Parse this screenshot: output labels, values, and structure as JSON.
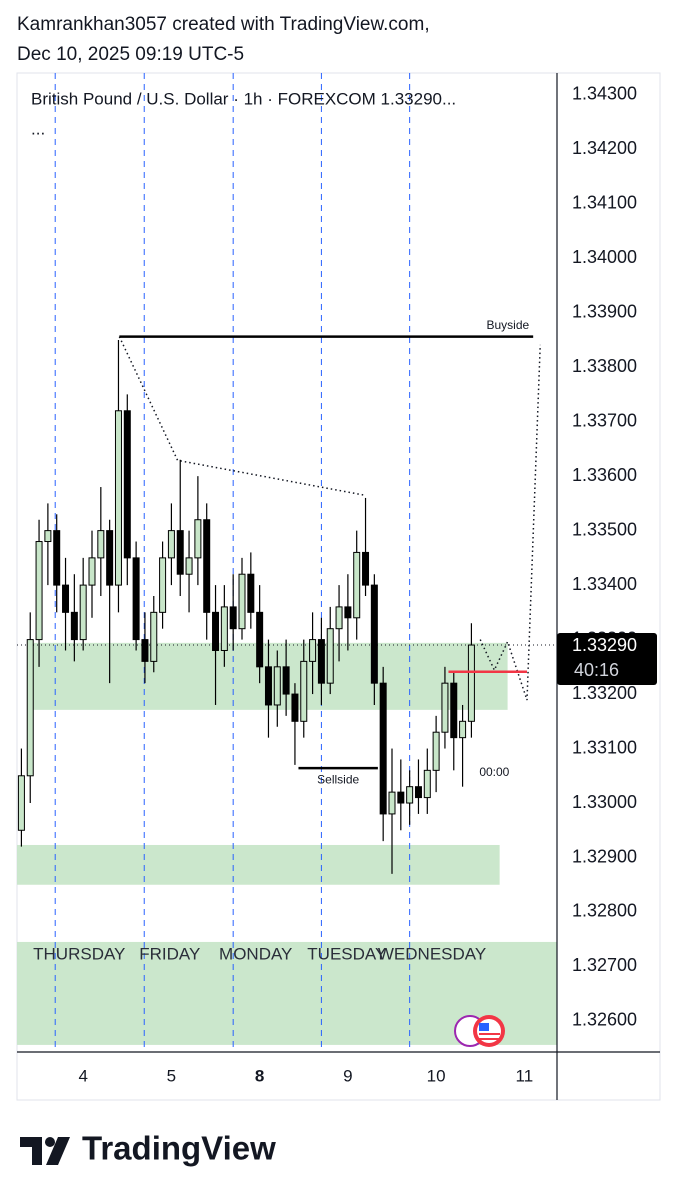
{
  "header": {
    "line1": "Kamrankhan3057 created with TradingView.com,",
    "line2": "Dec 10, 2025 09:19 UTC-5"
  },
  "footer": {
    "brand": "TradingView"
  },
  "chart_data": {
    "type": "candlestick",
    "legend": "British Pound / U.S. Dollar · 1h · FOREXCOM  1.33290...",
    "legend_more": "...",
    "up_color": "#c8e6c9",
    "down_color": "#000000",
    "wick_color": "#000000",
    "x": [
      -0.7,
      -0.6,
      -0.5,
      -0.4,
      -0.3,
      -0.2,
      -0.1,
      0,
      0.1,
      0.2,
      0.3,
      0.4,
      0.5,
      0.6,
      0.7,
      0.8,
      0.9,
      1.0,
      1.1,
      1.2,
      1.3,
      1.4,
      1.5,
      1.6,
      1.7,
      1.8,
      1.9,
      2.0,
      2.1,
      2.2,
      2.3,
      2.4,
      2.5,
      2.6,
      2.7,
      2.8,
      2.9,
      3.0,
      3.1,
      3.2,
      3.3,
      3.4,
      3.5,
      3.6,
      3.7,
      3.8,
      3.9,
      4.0,
      4.1,
      4.2,
      4.3,
      4.4
    ],
    "open": [
      1.3295,
      1.3305,
      1.333,
      1.3348,
      1.335,
      1.334,
      1.3335,
      1.333,
      1.334,
      1.3345,
      1.335,
      1.334,
      1.3372,
      1.3345,
      1.333,
      1.3326,
      1.3335,
      1.3345,
      1.335,
      1.3342,
      1.3345,
      1.3352,
      1.3335,
      1.3328,
      1.3336,
      1.3332,
      1.3342,
      1.3335,
      1.3325,
      1.3318,
      1.3325,
      1.332,
      1.3315,
      1.3326,
      1.333,
      1.3322,
      1.3332,
      1.3336,
      1.3334,
      1.3346,
      1.334,
      1.3322,
      1.3298,
      1.3302,
      1.33,
      1.3303,
      1.3301,
      1.3306,
      1.3313,
      1.3322,
      1.3312,
      1.3315
    ],
    "high": [
      1.331,
      1.3335,
      1.3352,
      1.3355,
      1.3353,
      1.3345,
      1.3342,
      1.3345,
      1.335,
      1.3358,
      1.3352,
      1.3385,
      1.3375,
      1.3348,
      1.3335,
      1.3338,
      1.3348,
      1.3355,
      1.3363,
      1.335,
      1.336,
      1.3355,
      1.334,
      1.334,
      1.3342,
      1.3345,
      1.3346,
      1.334,
      1.333,
      1.3328,
      1.333,
      1.3322,
      1.333,
      1.3335,
      1.3334,
      1.3336,
      1.334,
      1.3342,
      1.335,
      1.3356,
      1.3342,
      1.3325,
      1.331,
      1.3308,
      1.3306,
      1.3308,
      1.331,
      1.3316,
      1.3325,
      1.3324,
      1.3318,
      1.3333
    ],
    "low": [
      1.3292,
      1.33,
      1.3325,
      1.334,
      1.3335,
      1.3328,
      1.3326,
      1.3328,
      1.3334,
      1.3338,
      1.3322,
      1.3335,
      1.334,
      1.3328,
      1.3322,
      1.3324,
      1.3332,
      1.334,
      1.3338,
      1.3335,
      1.334,
      1.333,
      1.3318,
      1.3325,
      1.3328,
      1.333,
      1.3332,
      1.3322,
      1.3312,
      1.3314,
      1.3316,
      1.3307,
      1.3312,
      1.332,
      1.3318,
      1.332,
      1.3326,
      1.3328,
      1.333,
      1.3338,
      1.3318,
      1.3293,
      1.3287,
      1.3295,
      1.3296,
      1.3298,
      1.3298,
      1.3302,
      1.331,
      1.3306,
      1.3303,
      1.3312
    ],
    "close": [
      1.3305,
      1.333,
      1.3348,
      1.335,
      1.334,
      1.3335,
      1.333,
      1.334,
      1.3345,
      1.335,
      1.334,
      1.3372,
      1.3345,
      1.333,
      1.3326,
      1.3335,
      1.3345,
      1.335,
      1.3342,
      1.3345,
      1.3352,
      1.3335,
      1.3328,
      1.3336,
      1.3332,
      1.3342,
      1.3335,
      1.3325,
      1.3318,
      1.3325,
      1.332,
      1.3315,
      1.3326,
      1.333,
      1.3322,
      1.3332,
      1.3336,
      1.3334,
      1.3346,
      1.334,
      1.3322,
      1.3298,
      1.3302,
      1.33,
      1.3303,
      1.3301,
      1.3306,
      1.3313,
      1.3322,
      1.3312,
      1.3315,
      1.3329
    ],
    "xlim": [
      -0.75,
      5.37
    ],
    "xticks": [
      {
        "value": 0,
        "label": "4"
      },
      {
        "value": 1,
        "label": "5"
      },
      {
        "value": 2,
        "label": "8",
        "bold": true
      },
      {
        "value": 3,
        "label": "9"
      },
      {
        "value": 4,
        "label": "10"
      },
      {
        "value": 5,
        "label": "11"
      }
    ],
    "ylim": [
      1.32543,
      1.3434
    ],
    "yticks": [
      {
        "value": 1.343,
        "label": "1.34300"
      },
      {
        "value": 1.342,
        "label": "1.34200"
      },
      {
        "value": 1.341,
        "label": "1.34100"
      },
      {
        "value": 1.34,
        "label": "1.34000"
      },
      {
        "value": 1.339,
        "label": "1.33900"
      },
      {
        "value": 1.338,
        "label": "1.33800"
      },
      {
        "value": 1.337,
        "label": "1.33700"
      },
      {
        "value": 1.336,
        "label": "1.33600"
      },
      {
        "value": 1.335,
        "label": "1.33500"
      },
      {
        "value": 1.334,
        "label": "1.33400"
      },
      {
        "value": 1.333,
        "label": "1.33300"
      },
      {
        "value": 1.332,
        "label": "1.33200"
      },
      {
        "value": 1.331,
        "label": "1.33100"
      },
      {
        "value": 1.33,
        "label": "1.33000"
      },
      {
        "value": 1.329,
        "label": "1.32900"
      },
      {
        "value": 1.328,
        "label": "1.32800"
      },
      {
        "value": 1.327,
        "label": "1.32700"
      },
      {
        "value": 1.326,
        "label": "1.32600"
      }
    ],
    "grid": false,
    "session_breaks": [
      -0.317,
      0.692,
      1.7,
      2.7,
      3.7
    ],
    "last_price": {
      "value": 1.3329,
      "label": "1.33290",
      "countdown": "40:16"
    },
    "zones": [
      {
        "x": [
          -0.62,
          4.81
        ],
        "y": [
          1.33171,
          1.33294
        ]
      },
      {
        "x": [
          -0.75,
          4.72
        ],
        "y": [
          1.3285,
          1.32923
        ]
      },
      {
        "x": [
          -0.75,
          5.37
        ],
        "y": [
          1.32556,
          1.32745
        ]
      }
    ],
    "zone_color": "#c8e6c9",
    "levels": [
      {
        "name": "Buyside",
        "label_position": "above",
        "x": [
          0.41,
          5.1
        ],
        "y": 1.33856,
        "color": "#000000"
      },
      {
        "name": "Sellside",
        "label_position": "below",
        "x": [
          2.44,
          3.34
        ],
        "y": 1.33064,
        "color": "#000000"
      },
      {
        "x": [
          4.14,
          5.03
        ],
        "y": 1.33241,
        "color": "#f23645"
      }
    ],
    "paths": [
      {
        "x": [
          0.41,
          1.07,
          3.19
        ],
        "y": [
          1.33856,
          1.33629,
          1.33565
        ]
      },
      {
        "x": [
          4.5,
          4.66,
          4.81,
          5.03,
          5.18
        ],
        "y": [
          1.333,
          1.33244,
          1.33296,
          1.33189,
          1.33841
        ]
      }
    ],
    "annotations": [
      {
        "text": "00:00",
        "x": 4.66,
        "y": 1.33055
      }
    ],
    "day_labels": [
      {
        "text": "THURSDAY",
        "x": -0.567
      },
      {
        "text": "FRIDAY",
        "x": 0.635
      },
      {
        "text": "MONDAY",
        "x": 1.54
      },
      {
        "text": "TUESDAY",
        "x": 2.54
      },
      {
        "text": "WEDNESDAY",
        "x": 3.34
      }
    ],
    "day_labels_y": 1.32721
  }
}
